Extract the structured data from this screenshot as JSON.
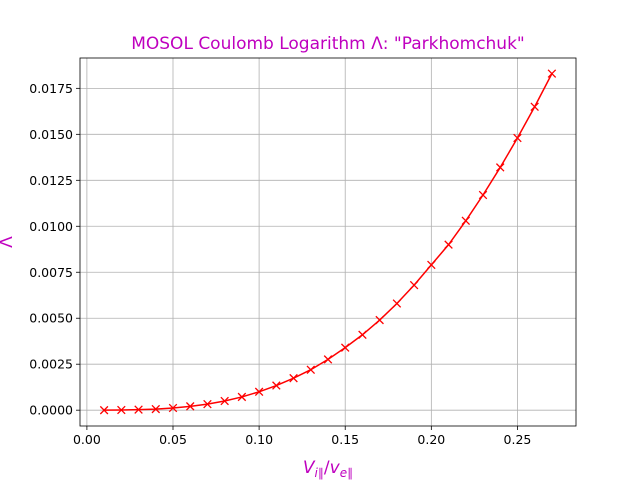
{
  "chart_data": {
    "type": "line",
    "title": "MOSOL Coulomb Logarithm Λ: \"Parkhomchuk\"",
    "xlabel": "Vi∥/ve∥",
    "ylabel": "Λ",
    "xlim": [
      -0.004,
      0.284
    ],
    "ylim": [
      -0.00086,
      0.01915
    ],
    "grid": true,
    "x_ticks": [
      0.0,
      0.05,
      0.1,
      0.15,
      0.2,
      0.25
    ],
    "x_tick_labels": [
      "0.00",
      "0.05",
      "0.10",
      "0.15",
      "0.20",
      "0.25"
    ],
    "y_ticks": [
      0.0,
      0.0025,
      0.005,
      0.0075,
      0.01,
      0.0125,
      0.015,
      0.0175
    ],
    "y_tick_labels": [
      "0.0000",
      "0.0025",
      "0.0050",
      "0.0075",
      "0.0100",
      "0.0125",
      "0.0150",
      "0.0175"
    ],
    "series": [
      {
        "color": "#ff0000",
        "marker": "x",
        "x": [
          0.01,
          0.02,
          0.03,
          0.04,
          0.05,
          0.06,
          0.07,
          0.08,
          0.09,
          0.1,
          0.11,
          0.12,
          0.13,
          0.14,
          0.15,
          0.16,
          0.17,
          0.18,
          0.19,
          0.2,
          0.21,
          0.22,
          0.23,
          0.24,
          0.25,
          0.26,
          0.27
        ],
        "y": [
          0.0,
          1e-05,
          3e-05,
          6e-05,
          0.00012,
          0.00021,
          0.00033,
          0.0005,
          0.00072,
          0.001,
          0.00134,
          0.00174,
          0.0022,
          0.00276,
          0.0034,
          0.0041,
          0.0049,
          0.0058,
          0.0068,
          0.0079,
          0.009,
          0.0103,
          0.0117,
          0.0132,
          0.0148,
          0.0165,
          0.0183
        ]
      }
    ],
    "title_color": "#bf00bf",
    "label_color": "#bf00bf"
  }
}
